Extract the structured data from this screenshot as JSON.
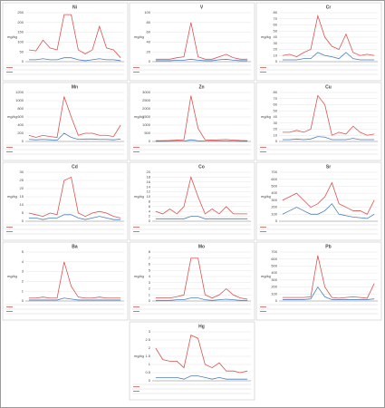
{
  "chart_data": [
    {
      "type": "line",
      "title": "Ni",
      "y_label": "mg/kg",
      "ylim": [
        0,
        250
      ],
      "yticks": [
        0,
        50,
        100,
        150,
        200,
        250
      ],
      "grid": true,
      "series": [
        {
          "color": "#d9534f",
          "values": [
            60,
            55,
            110,
            70,
            60,
            240,
            240,
            60,
            40,
            60,
            180,
            70,
            60,
            20
          ]
        },
        {
          "color": "#4a7ebb",
          "values": [
            10,
            10,
            15,
            10,
            10,
            20,
            20,
            10,
            5,
            10,
            15,
            10,
            10,
            5
          ]
        }
      ]
    },
    {
      "type": "line",
      "title": "V",
      "y_label": "mg/kg",
      "ylim": [
        0,
        100
      ],
      "yticks": [
        0,
        20,
        40,
        60,
        80,
        100
      ],
      "grid": true,
      "series": [
        {
          "color": "#d9534f",
          "values": [
            5,
            5,
            5,
            8,
            10,
            80,
            10,
            5,
            5,
            10,
            15,
            8,
            5,
            5
          ]
        },
        {
          "color": "#4a7ebb",
          "values": [
            2,
            2,
            2,
            3,
            3,
            5,
            3,
            2,
            2,
            4,
            5,
            3,
            2,
            2
          ]
        }
      ]
    },
    {
      "type": "line",
      "title": "Cr",
      "y_label": "mg/kg",
      "ylim": [
        0,
        80
      ],
      "yticks": [
        0,
        10,
        20,
        30,
        40,
        50,
        60,
        70,
        80
      ],
      "grid": true,
      "series": [
        {
          "color": "#d9534f",
          "values": [
            10,
            12,
            8,
            15,
            20,
            75,
            40,
            25,
            20,
            45,
            15,
            10,
            12,
            10
          ]
        },
        {
          "color": "#4a7ebb",
          "values": [
            3,
            3,
            3,
            5,
            5,
            15,
            10,
            8,
            5,
            15,
            5,
            3,
            3,
            3
          ]
        }
      ]
    },
    {
      "type": "line",
      "title": "Mn",
      "y_label": "mg/kg",
      "ylim": [
        0,
        1200
      ],
      "yticks": [
        0,
        200,
        400,
        600,
        800,
        1000,
        1200
      ],
      "grid": true,
      "series": [
        {
          "color": "#d9534f",
          "values": [
            150,
            100,
            150,
            120,
            100,
            1100,
            600,
            150,
            200,
            200,
            150,
            150,
            120,
            400
          ]
        },
        {
          "color": "#4a7ebb",
          "values": [
            50,
            40,
            50,
            40,
            30,
            200,
            100,
            50,
            60,
            60,
            50,
            50,
            40,
            60
          ]
        }
      ]
    },
    {
      "type": "line",
      "title": "Zn",
      "y_label": "mg/kg",
      "ylim": [
        0,
        3000
      ],
      "yticks": [
        0,
        500,
        1000,
        1500,
        2000,
        2500,
        3000
      ],
      "grid": true,
      "series": [
        {
          "color": "#d9534f",
          "values": [
            50,
            50,
            60,
            80,
            100,
            2800,
            800,
            100,
            80,
            100,
            120,
            80,
            60,
            50
          ]
        },
        {
          "color": "#4a7ebb",
          "values": [
            10,
            10,
            15,
            15,
            20,
            100,
            40,
            20,
            15,
            20,
            20,
            15,
            10,
            10
          ]
        }
      ]
    },
    {
      "type": "line",
      "title": "Cu",
      "y_label": "mg/kg",
      "ylim": [
        0,
        80
      ],
      "yticks": [
        0,
        10,
        20,
        30,
        40,
        50,
        60,
        70,
        80
      ],
      "grid": true,
      "series": [
        {
          "color": "#d9534f",
          "values": [
            15,
            15,
            18,
            15,
            20,
            75,
            60,
            10,
            15,
            12,
            25,
            15,
            10,
            12
          ]
        },
        {
          "color": "#4a7ebb",
          "values": [
            3,
            3,
            4,
            3,
            4,
            8,
            7,
            3,
            3,
            3,
            5,
            3,
            3,
            3
          ]
        }
      ]
    },
    {
      "type": "line",
      "title": "Cd",
      "y_label": "mg/kg",
      "ylim": [
        0,
        30
      ],
      "yticks": [
        0,
        5,
        10,
        15,
        20,
        25,
        30
      ],
      "grid": true,
      "series": [
        {
          "color": "#d9534f",
          "values": [
            5,
            4,
            3,
            5,
            4,
            25,
            27,
            5,
            3,
            5,
            6,
            5,
            3,
            2
          ]
        },
        {
          "color": "#4a7ebb",
          "values": [
            2,
            2,
            1,
            2,
            2,
            4,
            4,
            2,
            1,
            2,
            3,
            2,
            1,
            1
          ]
        }
      ]
    },
    {
      "type": "line",
      "title": "Co",
      "y_label": "mg/kg",
      "ylim": [
        0,
        20
      ],
      "yticks": [
        0,
        2,
        4,
        6,
        8,
        10,
        12,
        14,
        16,
        18,
        20
      ],
      "grid": true,
      "series": [
        {
          "color": "#d9534f",
          "values": [
            4,
            3,
            5,
            3,
            6,
            18,
            10,
            3,
            5,
            3,
            6,
            3,
            3,
            3
          ]
        },
        {
          "color": "#4a7ebb",
          "values": [
            1,
            1,
            1,
            1,
            1,
            2,
            2,
            1,
            1,
            1,
            1,
            1,
            1,
            1
          ]
        }
      ]
    },
    {
      "type": "line",
      "title": "Sr",
      "y_label": "mg/kg",
      "ylim": [
        0,
        700
      ],
      "yticks": [
        0,
        100,
        200,
        300,
        400,
        500,
        600,
        700
      ],
      "grid": true,
      "series": [
        {
          "color": "#d9534f",
          "values": [
            300,
            350,
            400,
            300,
            200,
            250,
            350,
            550,
            250,
            200,
            150,
            150,
            100,
            300
          ]
        },
        {
          "color": "#4a7ebb",
          "values": [
            100,
            150,
            200,
            150,
            100,
            100,
            150,
            250,
            100,
            80,
            60,
            50,
            40,
            100
          ]
        }
      ]
    },
    {
      "type": "line",
      "title": "Ba",
      "y_label": "mg/kg",
      "ylim": [
        0,
        5
      ],
      "yticks": [
        0,
        1,
        2,
        3,
        4,
        5
      ],
      "grid": true,
      "series": [
        {
          "color": "#d9534f",
          "values": [
            0.3,
            0.3,
            0.4,
            0.3,
            0.3,
            4,
            1.5,
            0.4,
            0.3,
            0.3,
            0.4,
            0.3,
            0.3,
            0.3
          ]
        },
        {
          "color": "#4a7ebb",
          "values": [
            0.1,
            0.1,
            0.1,
            0.1,
            0.1,
            0.3,
            0.2,
            0.1,
            0.1,
            0.1,
            0.1,
            0.1,
            0.1,
            0.1
          ]
        }
      ]
    },
    {
      "type": "line",
      "title": "Mo",
      "y_label": "mg/kg",
      "ylim": [
        0,
        8
      ],
      "yticks": [
        0,
        1,
        2,
        3,
        4,
        5,
        6,
        7,
        8
      ],
      "grid": true,
      "series": [
        {
          "color": "#d9534f",
          "values": [
            0.5,
            0.5,
            0.5,
            0.7,
            1,
            7,
            7,
            1,
            0.5,
            1,
            2,
            1,
            0.5,
            0.3
          ]
        },
        {
          "color": "#4a7ebb",
          "values": [
            0.1,
            0.1,
            0.1,
            0.2,
            0.2,
            0.5,
            0.5,
            0.2,
            0.1,
            0.2,
            0.3,
            0.2,
            0.1,
            0.1
          ]
        }
      ]
    },
    {
      "type": "line",
      "title": "Pb",
      "y_label": "mg/kg",
      "ylim": [
        0,
        700
      ],
      "yticks": [
        0,
        100,
        200,
        300,
        400,
        500,
        600,
        700
      ],
      "grid": true,
      "series": [
        {
          "color": "#d9534f",
          "values": [
            50,
            50,
            50,
            50,
            60,
            650,
            200,
            50,
            40,
            50,
            60,
            50,
            40,
            250
          ]
        },
        {
          "color": "#4a7ebb",
          "values": [
            20,
            20,
            20,
            20,
            30,
            200,
            60,
            20,
            20,
            20,
            20,
            20,
            20,
            30
          ]
        }
      ]
    },
    {
      "type": "line",
      "title": "Hg",
      "y_label": "mg/kg",
      "ylim": [
        0,
        3
      ],
      "yticks": [
        0,
        0.5,
        1,
        1.5,
        2,
        2.5,
        3
      ],
      "grid": true,
      "series": [
        {
          "color": "#d9534f",
          "values": [
            2,
            1.3,
            1.2,
            1.2,
            0.8,
            2.8,
            2.6,
            1.0,
            0.8,
            1.1,
            0.6,
            0.6,
            0.5,
            0.6
          ]
        },
        {
          "color": "#4a7ebb",
          "values": [
            0.2,
            0.2,
            0.2,
            0.2,
            0.1,
            0.3,
            0.3,
            0.2,
            0.1,
            0.2,
            0.1,
            0.1,
            0.1,
            0.1
          ]
        }
      ]
    }
  ]
}
